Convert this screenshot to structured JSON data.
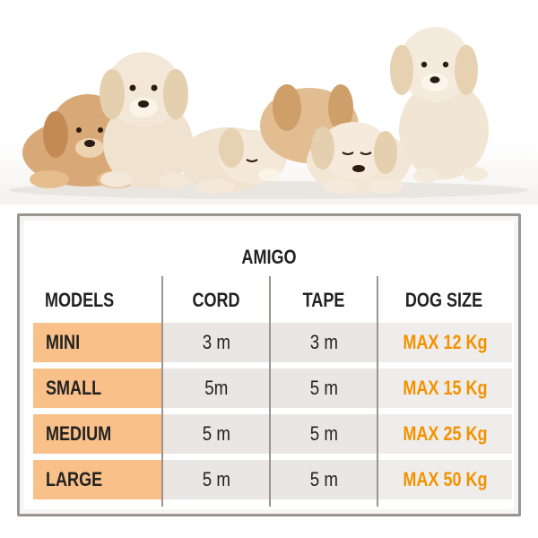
{
  "photo": {
    "alt": ""
  },
  "table": {
    "title": "AMIGO",
    "headers": {
      "models": "MODELS",
      "cord": "CORD",
      "tape": "TAPE",
      "dog_size": "DOG SIZE"
    },
    "rows": [
      {
        "model": "MINI",
        "cord": "3 m",
        "tape": "3 m",
        "size": "MAX 12 Kg"
      },
      {
        "model": "SMALL",
        "cord": "5m",
        "tape": "5 m",
        "size": "MAX 15 Kg"
      },
      {
        "model": "MEDIUM",
        "cord": "5 m",
        "tape": "5 m",
        "size": "MAX 25 Kg"
      },
      {
        "model": "LARGE",
        "cord": "5 m",
        "tape": "5 m",
        "size": "MAX 50 Kg"
      }
    ],
    "colors": {
      "model_bg": "#fac089",
      "value_bg": "#e9e6e4",
      "size_text": "#f39200",
      "border": "#9b9590"
    }
  }
}
